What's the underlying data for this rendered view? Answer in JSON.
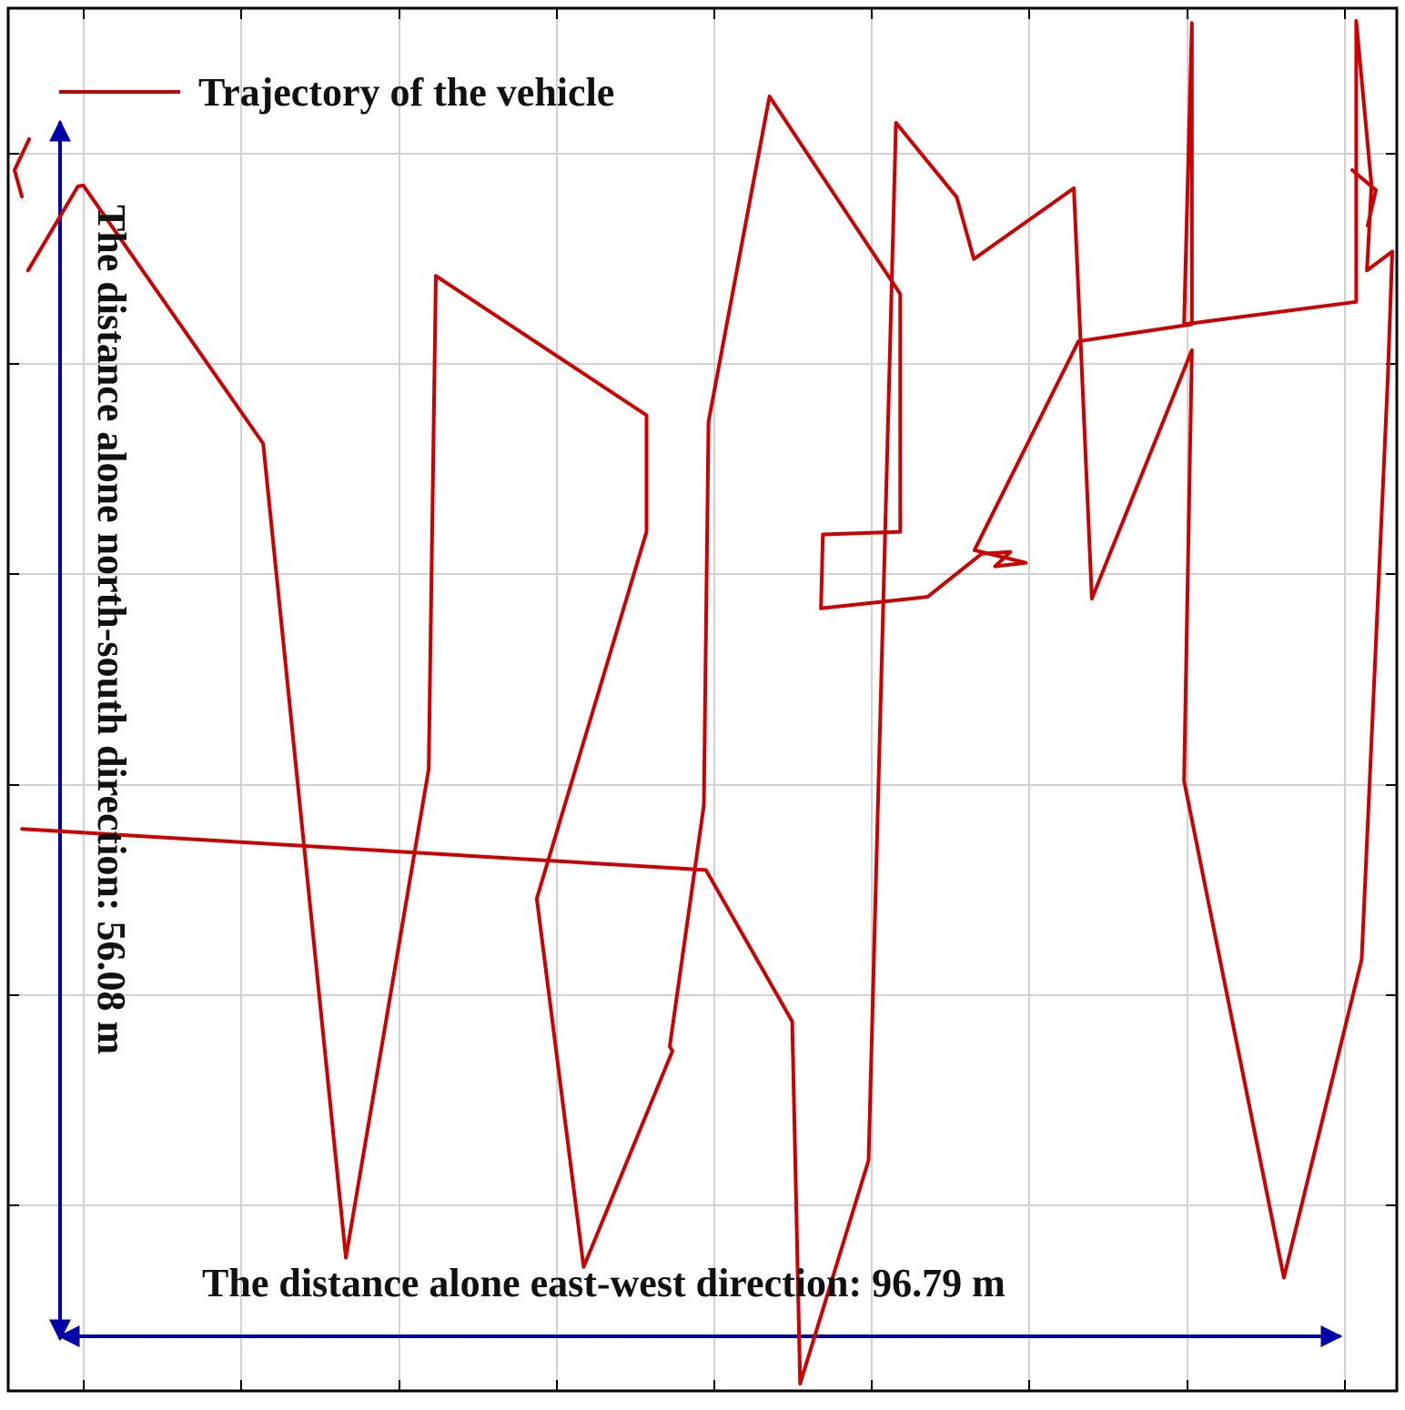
{
  "chart_data": {
    "type": "line",
    "grid": true,
    "xlim": [
      0,
      100
    ],
    "ylim": [
      0,
      100
    ],
    "legend": {
      "position": "top-left",
      "entries": [
        {
          "label": "Trajectory  of the vehicle",
          "color": "#cc0000"
        }
      ]
    },
    "series": [
      {
        "name": "Trajectory  of the vehicle",
        "color": "#cc0000",
        "x": [
          1.43,
          5.02,
          5.41,
          18.36,
          24.32,
          30.28,
          30.8,
          45.97,
          45.97,
          38.07,
          41.44,
          47.84,
          47.64,
          50.1,
          50.43,
          54.82,
          64.24,
          64.24,
          58.67,
          58.53,
          66.21,
          70.1,
          72.17,
          71.07,
          73.28,
          69.59,
          77.07,
          85.24,
          85.24,
          84.68,
          97.08,
          97.08,
          98.18,
          97.85,
          99.67,
          99.35,
          97.47,
          91.87,
          84.68,
          85.24,
          78.04,
          76.74,
          69.54,
          68.31,
          63.93,
          61.96,
          57.03,
          56.46,
          50.25,
          1.0
        ],
        "y": [
          81.03,
          87.11,
          87.18,
          68.51,
          9.63,
          44.96,
          80.64,
          70.56,
          62.13,
          35.61,
          8.97,
          24.59,
          24.91,
          42.35,
          70.09,
          93.62,
          79.33,
          62.13,
          61.94,
          56.59,
          57.43,
          60.54,
          60.67,
          59.63,
          59.89,
          60.8,
          75.91,
          77.14,
          98.92,
          77.14,
          78.76,
          99.08,
          87.18,
          81.03,
          82.4,
          73.22,
          31.21,
          8.19,
          44.12,
          75.26,
          57.3,
          86.98,
          81.86,
          86.33,
          91.71,
          16.67,
          0.52,
          26.72,
          37.67,
          40.64
        ]
      }
    ],
    "annotations": [
      {
        "id": "ns",
        "text": "The distance alone north-south direction: 56.08 m",
        "color": "#0000aa"
      },
      {
        "id": "ew",
        "text": "The distance alone east-west direction: 96.79 m",
        "color": "#0000aa"
      }
    ]
  }
}
